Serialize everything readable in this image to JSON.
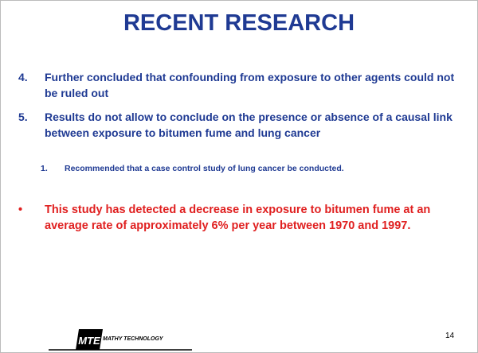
{
  "header": {
    "title": "RECENT RESEARCH"
  },
  "items": [
    {
      "marker": "4.",
      "text": "Further concluded that confounding from exposure to other agents could not be ruled out"
    },
    {
      "marker": "5.",
      "text": "Results do not allow to conclude on the presence or absence of a causal link between exposure to bitumen fume and lung cancer",
      "subitems": [
        {
          "marker": "1.",
          "text": "Recommended that a case control study of lung cancer be conducted."
        }
      ]
    }
  ],
  "highlight": {
    "marker": "•",
    "text": "This study has detected a decrease in exposure to bitumen fume at an average rate of approximately 6% per year between 1970 and 1997."
  },
  "footer": {
    "logo_mark": "MTE",
    "company": "MATHY TECHNOLOGY",
    "page_number": "14"
  }
}
